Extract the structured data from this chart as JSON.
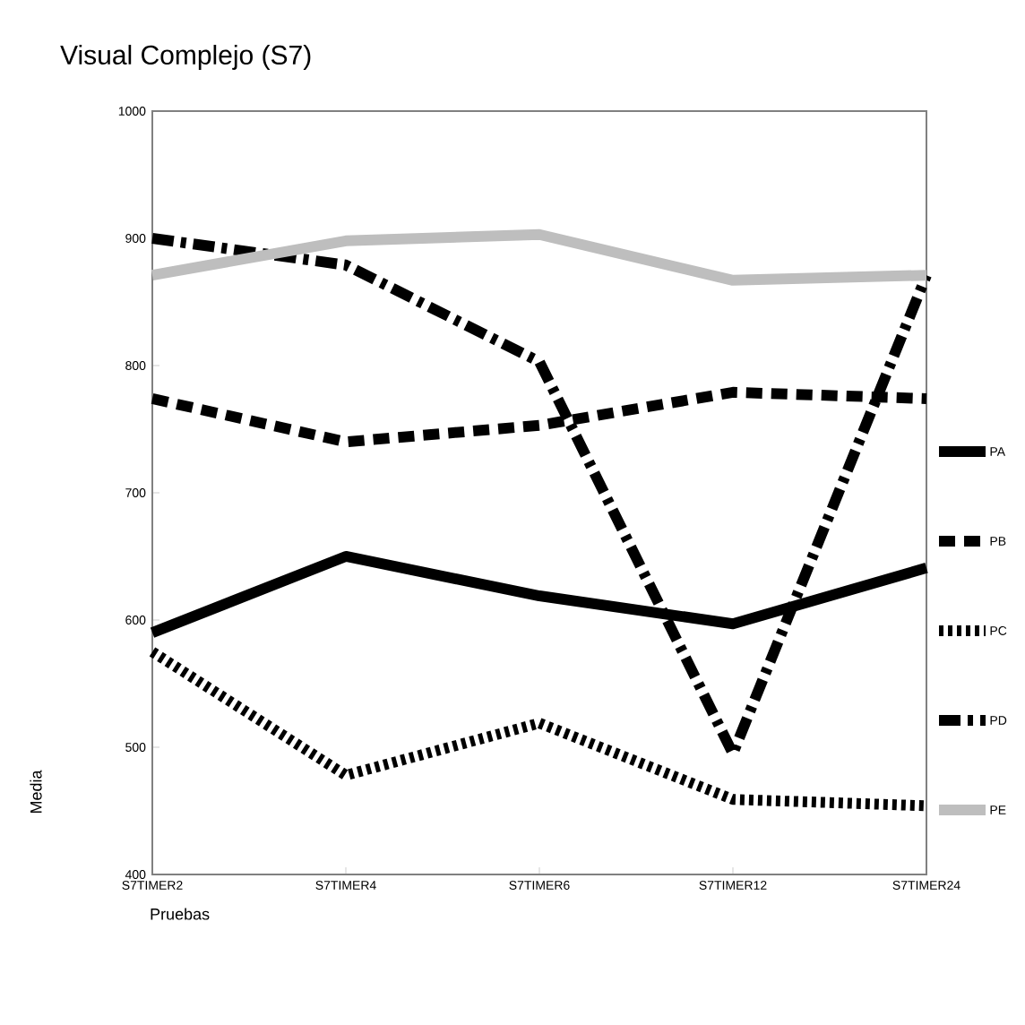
{
  "chart_data": {
    "type": "line",
    "title": "Visual Complejo (S7)",
    "xlabel": "Pruebas",
    "ylabel": "Media",
    "categories": [
      "S7TIMER2",
      "S7TIMER4",
      "S7TIMER6",
      "S7TIMER12",
      "S7TIMER24"
    ],
    "ylim": [
      400,
      1000
    ],
    "yticks": [
      400,
      500,
      600,
      700,
      800,
      900,
      1000
    ],
    "grid": false,
    "legend": "right",
    "marker": "none",
    "series": [
      {
        "name": "PA",
        "color": "#000000",
        "line_style": "solid",
        "values": [
          590,
          650,
          619,
          597,
          641
        ]
      },
      {
        "name": "PB",
        "color": "#000000",
        "line_style": "dashed",
        "values": [
          774,
          740,
          753,
          779,
          774
        ]
      },
      {
        "name": "PC",
        "color": "#000000",
        "line_style": "dotted",
        "values": [
          575,
          478,
          519,
          459,
          454
        ]
      },
      {
        "name": "PD",
        "color": "#000000",
        "line_style": "dashdot",
        "values": [
          900,
          879,
          803,
          495,
          871
        ]
      },
      {
        "name": "PE",
        "color": "#bebebe",
        "line_style": "solid",
        "values": [
          871,
          898,
          903,
          867,
          871
        ]
      }
    ]
  }
}
